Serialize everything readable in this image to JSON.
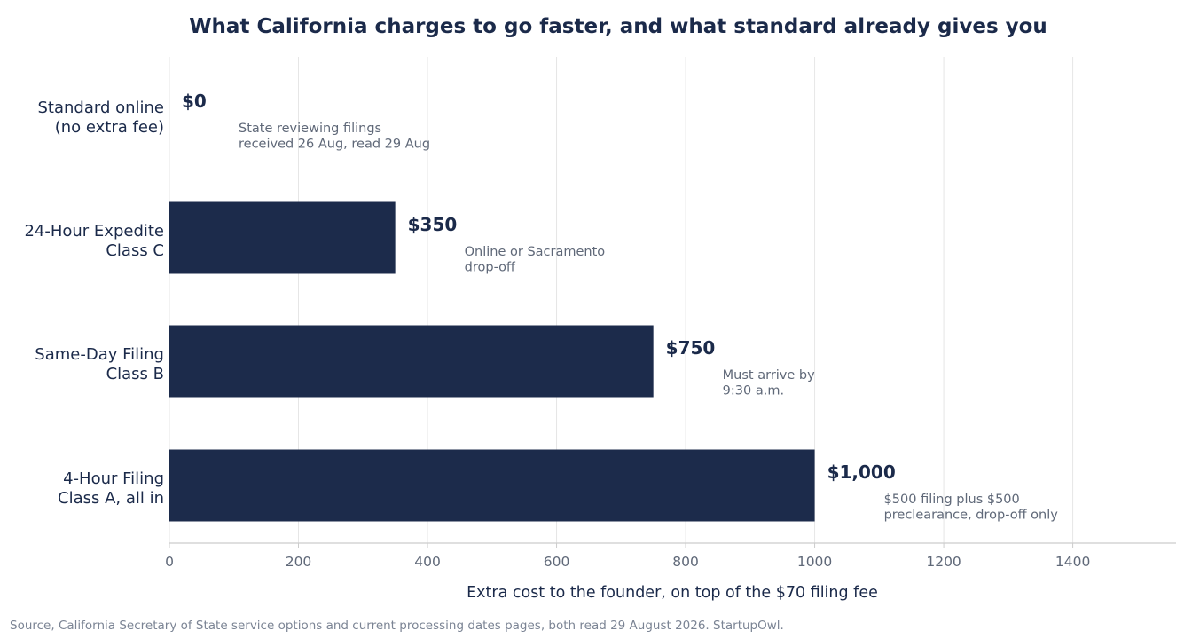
{
  "chart_data": {
    "type": "bar",
    "orientation": "horizontal",
    "title": "What California charges to go faster, and what standard already gives you",
    "categories": [
      [
        "Standard online",
        "(no extra fee)"
      ],
      [
        "24-Hour Expedite",
        "Class C"
      ],
      [
        "Same-Day Filing",
        "Class B"
      ],
      [
        "4-Hour Filing",
        "Class A, all in"
      ]
    ],
    "values": [
      0,
      350,
      750,
      1000
    ],
    "value_labels": [
      "$0",
      "$350",
      "$750",
      "$1,000"
    ],
    "annotations": [
      [
        "State reviewing filings",
        "received 26 Aug, read 29 Aug"
      ],
      [
        "Online or Sacramento",
        "drop-off"
      ],
      [
        "Must arrive by",
        "9:30 a.m."
      ],
      [
        "$500 filing plus $500",
        "preclearance, drop-off only"
      ]
    ],
    "xlabel": "Extra cost to the founder, on top of the $70 filing fee",
    "ylabel": "",
    "xlim": [
      0,
      1560
    ],
    "xticks": [
      0,
      200,
      400,
      600,
      800,
      1000,
      1200,
      1400
    ],
    "grid": "vertical",
    "bar_color": "#1c2b4b"
  },
  "source_note": "Source, California Secretary of State service options and current processing dates pages, both read 29 August 2026. StartupOwl.",
  "colors": {
    "bar": "#1c2b4b",
    "title": "#1b2a4a",
    "muted_text": "#5f6878",
    "gridline": "#e6e6e6",
    "axis": "#cccccc"
  }
}
